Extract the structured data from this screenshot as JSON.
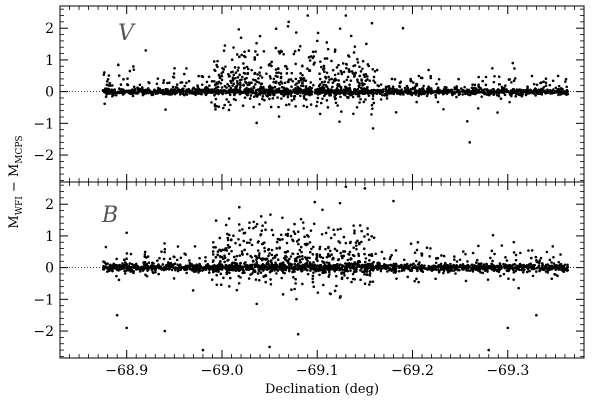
{
  "chart_data": {
    "type": "scatter",
    "xlabel": "Declination (deg)",
    "ylabel": {
      "main": "M",
      "sub1": "WFI",
      "minus": " − ",
      "main2": "M",
      "sub2": "MCPS"
    },
    "xlim": [
      -68.83,
      -69.38
    ],
    "x_ticks": [
      -68.9,
      -69.0,
      -69.1,
      -69.2,
      -69.3
    ],
    "x_tick_labels": [
      "−68.9",
      "−69.0",
      "−69.1",
      "−69.2",
      "−69.3"
    ],
    "panels": [
      {
        "name": "V",
        "band_label": "V",
        "ylim": [
          -2.85,
          2.7
        ],
        "y_ticks": [
          -2,
          -1,
          0,
          1,
          2
        ],
        "y_tick_labels": [
          "−2",
          "−1",
          "0",
          "1",
          "2"
        ],
        "data_x_range": [
          -68.875,
          -69.363
        ],
        "main_sequence_scatter": 0.05,
        "points": [
          [
            -69.09,
            2.4
          ],
          [
            -69.13,
            2.4
          ],
          [
            -69.07,
            2.2
          ],
          [
            -69.19,
            2.0
          ],
          [
            -68.92,
            1.3
          ],
          [
            -69.26,
            -1.6
          ],
          [
            -69.02,
            1.7
          ],
          [
            -69.04,
            1.75
          ],
          [
            -69.1,
            1.6
          ],
          [
            -69.11,
            1.55
          ]
        ]
      },
      {
        "name": "B",
        "band_label": "B",
        "ylim": [
          -2.85,
          2.7
        ],
        "y_ticks": [
          -2,
          -1,
          0,
          1,
          2
        ],
        "y_tick_labels": [
          "−2",
          "−1",
          "0",
          "1",
          "2"
        ],
        "data_x_range": [
          -68.875,
          -69.363
        ],
        "main_sequence_scatter": 0.06,
        "points": [
          [
            -69.1,
            2.8
          ],
          [
            -69.13,
            2.55
          ],
          [
            -69.15,
            2.5
          ],
          [
            -69.18,
            2.1
          ],
          [
            -68.89,
            -1.5
          ],
          [
            -68.9,
            -1.9
          ],
          [
            -68.94,
            -2.0
          ],
          [
            -68.98,
            -2.6
          ],
          [
            -69.05,
            -2.5
          ],
          [
            -69.08,
            -2.1
          ],
          [
            -69.3,
            -1.9
          ],
          [
            -69.33,
            -1.5
          ],
          [
            -69.28,
            -2.6
          ],
          [
            -68.9,
            1.1
          ]
        ]
      }
    ]
  }
}
